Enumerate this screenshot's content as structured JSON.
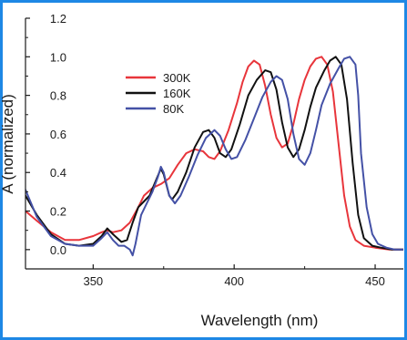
{
  "chart_data": {
    "type": "line",
    "title": "",
    "xlabel": "Wavelength (nm)",
    "ylabel": "A (normalized)",
    "xlim": [
      326,
      460
    ],
    "ylim": [
      -0.1,
      1.2
    ],
    "xticks": [
      350,
      400,
      450
    ],
    "xtick_labels": [
      "350",
      "400",
      "450"
    ],
    "yticks": [
      0.0,
      0.2,
      0.4,
      0.6,
      0.8,
      1.0,
      1.2
    ],
    "ytick_labels": [
      "0.0",
      "0.2",
      "0.4",
      "0.6",
      "0.8",
      "1.0",
      "1.2"
    ],
    "grid": false,
    "legend_position": "top-left",
    "series": [
      {
        "name": "300K",
        "color": "#e8353b",
        "points": [
          [
            326,
            0.2
          ],
          [
            330,
            0.15
          ],
          [
            335,
            0.09
          ],
          [
            340,
            0.05
          ],
          [
            345,
            0.05
          ],
          [
            350,
            0.07
          ],
          [
            353,
            0.09
          ],
          [
            355,
            0.1
          ],
          [
            357,
            0.09
          ],
          [
            360,
            0.1
          ],
          [
            363,
            0.14
          ],
          [
            366,
            0.22
          ],
          [
            368,
            0.28
          ],
          [
            371,
            0.32
          ],
          [
            374,
            0.34
          ],
          [
            377,
            0.37
          ],
          [
            380,
            0.44
          ],
          [
            383,
            0.5
          ],
          [
            386,
            0.52
          ],
          [
            389,
            0.51
          ],
          [
            391,
            0.48
          ],
          [
            393,
            0.47
          ],
          [
            395,
            0.51
          ],
          [
            398,
            0.62
          ],
          [
            401,
            0.76
          ],
          [
            403,
            0.87
          ],
          [
            405,
            0.95
          ],
          [
            407,
            0.98
          ],
          [
            409,
            0.96
          ],
          [
            411,
            0.85
          ],
          [
            413,
            0.7
          ],
          [
            415,
            0.58
          ],
          [
            417,
            0.53
          ],
          [
            419,
            0.55
          ],
          [
            421,
            0.65
          ],
          [
            423,
            0.78
          ],
          [
            425,
            0.88
          ],
          [
            427,
            0.95
          ],
          [
            429,
            0.99
          ],
          [
            431,
            1.0
          ],
          [
            433,
            0.96
          ],
          [
            435,
            0.82
          ],
          [
            437,
            0.55
          ],
          [
            439,
            0.28
          ],
          [
            441,
            0.12
          ],
          [
            443,
            0.05
          ],
          [
            446,
            0.02
          ],
          [
            450,
            0.01
          ],
          [
            455,
            0.0
          ],
          [
            460,
            0.0
          ]
        ]
      },
      {
        "name": "160K",
        "color": "#111111",
        "points": [
          [
            326,
            0.28
          ],
          [
            330,
            0.18
          ],
          [
            335,
            0.08
          ],
          [
            340,
            0.03
          ],
          [
            345,
            0.02
          ],
          [
            350,
            0.03
          ],
          [
            353,
            0.07
          ],
          [
            355,
            0.11
          ],
          [
            357,
            0.08
          ],
          [
            360,
            0.04
          ],
          [
            362,
            0.05
          ],
          [
            364,
            0.14
          ],
          [
            366,
            0.22
          ],
          [
            368,
            0.25
          ],
          [
            370,
            0.28
          ],
          [
            372,
            0.35
          ],
          [
            374,
            0.42
          ],
          [
            375,
            0.39
          ],
          [
            377,
            0.28
          ],
          [
            378,
            0.26
          ],
          [
            380,
            0.3
          ],
          [
            383,
            0.4
          ],
          [
            386,
            0.53
          ],
          [
            389,
            0.61
          ],
          [
            391,
            0.62
          ],
          [
            393,
            0.58
          ],
          [
            395,
            0.5
          ],
          [
            397,
            0.48
          ],
          [
            399,
            0.52
          ],
          [
            402,
            0.65
          ],
          [
            405,
            0.8
          ],
          [
            408,
            0.88
          ],
          [
            411,
            0.93
          ],
          [
            413,
            0.92
          ],
          [
            415,
            0.83
          ],
          [
            417,
            0.66
          ],
          [
            419,
            0.53
          ],
          [
            421,
            0.48
          ],
          [
            423,
            0.52
          ],
          [
            425,
            0.62
          ],
          [
            427,
            0.74
          ],
          [
            429,
            0.84
          ],
          [
            432,
            0.93
          ],
          [
            434,
            0.98
          ],
          [
            436,
            1.0
          ],
          [
            438,
            0.96
          ],
          [
            440,
            0.78
          ],
          [
            442,
            0.45
          ],
          [
            444,
            0.18
          ],
          [
            446,
            0.06
          ],
          [
            449,
            0.02
          ],
          [
            452,
            0.01
          ],
          [
            456,
            0.0
          ],
          [
            460,
            0.0
          ]
        ]
      },
      {
        "name": "80K",
        "color": "#4451a6",
        "points": [
          [
            326,
            0.31
          ],
          [
            330,
            0.17
          ],
          [
            335,
            0.07
          ],
          [
            340,
            0.03
          ],
          [
            345,
            0.02
          ],
          [
            350,
            0.02
          ],
          [
            353,
            0.06
          ],
          [
            355,
            0.09
          ],
          [
            357,
            0.05
          ],
          [
            359,
            0.02
          ],
          [
            361,
            0.02
          ],
          [
            363,
            0.0
          ],
          [
            364,
            -0.03
          ],
          [
            365,
            0.03
          ],
          [
            367,
            0.18
          ],
          [
            369,
            0.24
          ],
          [
            371,
            0.3
          ],
          [
            373,
            0.38
          ],
          [
            374,
            0.43
          ],
          [
            375,
            0.4
          ],
          [
            377,
            0.28
          ],
          [
            379,
            0.24
          ],
          [
            381,
            0.28
          ],
          [
            384,
            0.38
          ],
          [
            387,
            0.49
          ],
          [
            390,
            0.58
          ],
          [
            393,
            0.62
          ],
          [
            395,
            0.59
          ],
          [
            397,
            0.52
          ],
          [
            399,
            0.47
          ],
          [
            401,
            0.48
          ],
          [
            404,
            0.57
          ],
          [
            407,
            0.68
          ],
          [
            410,
            0.79
          ],
          [
            413,
            0.87
          ],
          [
            415,
            0.9
          ],
          [
            417,
            0.88
          ],
          [
            419,
            0.78
          ],
          [
            421,
            0.6
          ],
          [
            423,
            0.47
          ],
          [
            425,
            0.44
          ],
          [
            427,
            0.5
          ],
          [
            429,
            0.62
          ],
          [
            431,
            0.75
          ],
          [
            434,
            0.86
          ],
          [
            437,
            0.94
          ],
          [
            439,
            0.99
          ],
          [
            441,
            1.0
          ],
          [
            443,
            0.96
          ],
          [
            444,
            0.8
          ],
          [
            445,
            0.5
          ],
          [
            447,
            0.22
          ],
          [
            449,
            0.08
          ],
          [
            451,
            0.03
          ],
          [
            454,
            0.01
          ],
          [
            457,
            0.0
          ],
          [
            460,
            0.0
          ]
        ]
      }
    ]
  }
}
